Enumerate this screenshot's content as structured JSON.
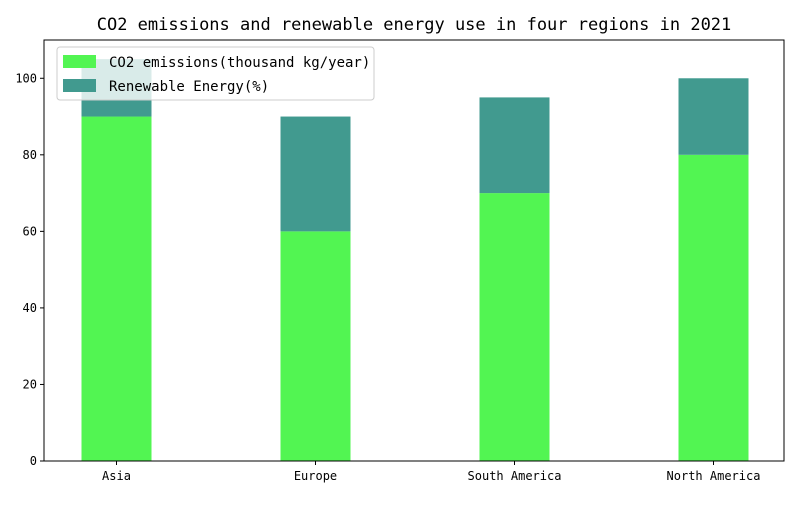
{
  "chart_data": {
    "type": "bar",
    "stacked": true,
    "title": "CO2 emissions and renewable energy use in four regions in 2021",
    "xlabel": "",
    "ylabel": "",
    "categories": [
      "Asia",
      "Europe",
      "South America",
      "North America"
    ],
    "series": [
      {
        "name": "CO2 emissions(thousand kg/year)",
        "values": [
          90,
          60,
          70,
          80
        ],
        "color": "#52f552"
      },
      {
        "name": "Renewable Energy(%)",
        "values": [
          15,
          30,
          25,
          20
        ],
        "color": "#419a8f"
      }
    ],
    "ylim": [
      0,
      110
    ],
    "yticks": [
      0,
      20,
      40,
      60,
      80,
      100
    ],
    "grid": false,
    "legend": "top-left"
  }
}
